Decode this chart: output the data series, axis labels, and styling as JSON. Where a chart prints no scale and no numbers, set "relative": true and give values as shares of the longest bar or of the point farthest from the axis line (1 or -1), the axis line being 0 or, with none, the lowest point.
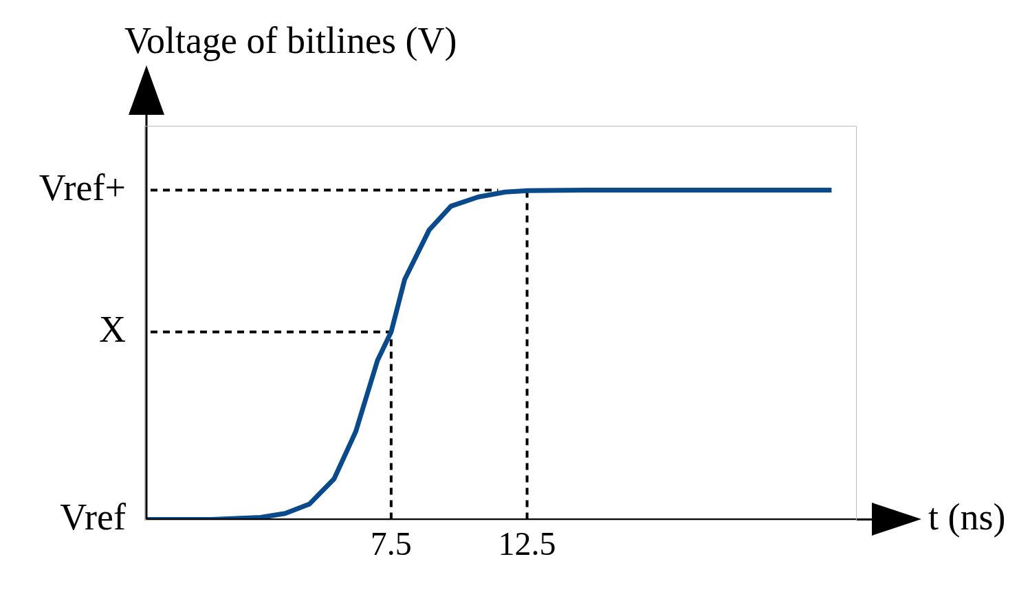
{
  "chart_data": {
    "type": "line",
    "relative": true,
    "ylabel": "Voltage of bitlines (V)",
    "xlabel": "t (ns)",
    "x": [
      -1.5,
      0.9,
      2.7,
      3.6,
      4.5,
      5.4,
      6.2,
      7.0,
      7.5,
      8.0,
      8.9,
      9.7,
      10.7,
      11.7,
      12.5,
      14.6,
      23.7
    ],
    "xlim": [
      -1.5,
      24.6
    ],
    "xticks": [
      7.5,
      12.5
    ],
    "annotations": [
      "Vref"
    ],
    "series": [
      {
        "color": "#0b4a8a",
        "values": [
          0,
          0,
          0.006,
          0.018,
          0.047,
          0.123,
          0.267,
          0.483,
          0.569,
          0.729,
          0.879,
          0.951,
          0.979,
          0.994,
          0.998,
          1,
          1
        ]
      }
    ],
    "ref_lines": [
      {
        "axis": "y",
        "value": 1,
        "label": "Vref+",
        "line_style": "dashed",
        "color": "#000000"
      },
      {
        "axis": "y",
        "value": 0.569,
        "label": "X",
        "line_style": "dashed",
        "color": "#000000"
      },
      {
        "axis": "x",
        "value": 7.5,
        "line_style": "dashed",
        "color": "#000000"
      },
      {
        "axis": "x",
        "value": 12.5,
        "line_style": "dashed",
        "color": "#000000"
      }
    ],
    "grid": false,
    "legend": false,
    "marker": "none",
    "line_style": "solid"
  }
}
